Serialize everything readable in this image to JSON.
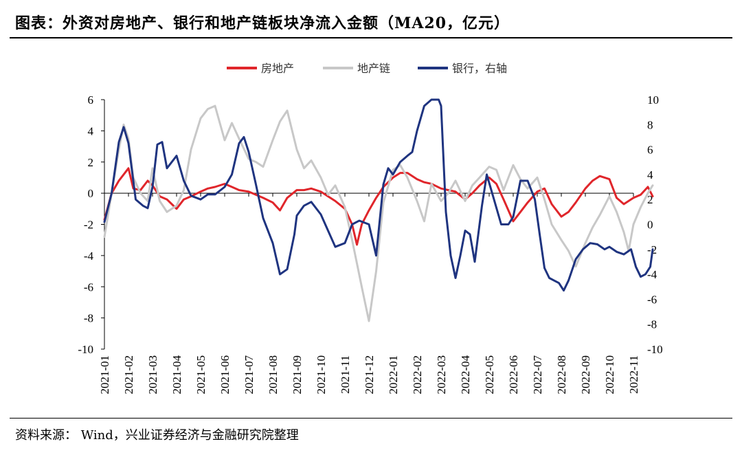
{
  "title": "图表：外资对房地产、银行和地产链板块净流入金额（MA20，亿元）",
  "source": "资料来源： Wind，兴业证券经济与金融研究院整理",
  "chart_data": {
    "type": "line",
    "legend_position": "top-center",
    "grid": false,
    "x": [
      "2021-01",
      "2021-02",
      "2021-03",
      "2021-04",
      "2021-05",
      "2021-06",
      "2021-07",
      "2021-08",
      "2021-09",
      "2021-10",
      "2021-11",
      "2021-12",
      "2022-01",
      "2022-02",
      "2022-03",
      "2022-04",
      "2022-05",
      "2022-06",
      "2022-07",
      "2022-08",
      "2022-09",
      "2022-10",
      "2022-11"
    ],
    "y_left": {
      "range": [
        -10,
        6
      ],
      "ticks": [
        "6",
        "4",
        "2",
        "0",
        "-2",
        "-4",
        "-6",
        "-8",
        "-10"
      ]
    },
    "y_right": {
      "range": [
        -10,
        10
      ],
      "ticks": [
        "10",
        "8",
        "6",
        "4",
        "2",
        "0",
        "-2",
        "-4",
        "-6",
        "-8",
        "-10"
      ]
    },
    "series": [
      {
        "name": "房地产",
        "color": "#e0262b",
        "axis": "left",
        "points": [
          [
            0,
            -1.7
          ],
          [
            0.3,
            0.0
          ],
          [
            0.6,
            0.8
          ],
          [
            0.8,
            1.2
          ],
          [
            1.0,
            1.6
          ],
          [
            1.2,
            0.3
          ],
          [
            1.5,
            0.2
          ],
          [
            1.8,
            0.8
          ],
          [
            2.0,
            0.5
          ],
          [
            2.3,
            -0.2
          ],
          [
            2.6,
            -0.4
          ],
          [
            3.0,
            -1.0
          ],
          [
            3.3,
            -0.4
          ],
          [
            3.6,
            -0.2
          ],
          [
            4.0,
            0.1
          ],
          [
            4.3,
            0.3
          ],
          [
            4.6,
            0.4
          ],
          [
            5.0,
            0.6
          ],
          [
            5.3,
            0.4
          ],
          [
            5.6,
            0.2
          ],
          [
            6.0,
            0.1
          ],
          [
            6.3,
            -0.1
          ],
          [
            6.6,
            -0.3
          ],
          [
            7.0,
            -0.6
          ],
          [
            7.3,
            -1.1
          ],
          [
            7.6,
            -0.3
          ],
          [
            8.0,
            0.2
          ],
          [
            8.3,
            0.2
          ],
          [
            8.6,
            0.3
          ],
          [
            9.0,
            0.1
          ],
          [
            9.3,
            -0.2
          ],
          [
            9.6,
            -0.5
          ],
          [
            10.0,
            -1.0
          ],
          [
            10.3,
            -2.0
          ],
          [
            10.5,
            -3.3
          ],
          [
            10.7,
            -2.0
          ],
          [
            11.0,
            -1.1
          ],
          [
            11.3,
            -0.3
          ],
          [
            11.6,
            0.4
          ],
          [
            12.0,
            1.0
          ],
          [
            12.3,
            1.3
          ],
          [
            12.6,
            1.3
          ],
          [
            13.0,
            0.9
          ],
          [
            13.3,
            0.7
          ],
          [
            13.6,
            0.6
          ],
          [
            14.0,
            0.3
          ],
          [
            14.3,
            0.2
          ],
          [
            14.6,
            0.1
          ],
          [
            15.0,
            -0.4
          ],
          [
            15.3,
            0.0
          ],
          [
            15.6,
            0.5
          ],
          [
            16.0,
            1.0
          ],
          [
            16.3,
            0.6
          ],
          [
            16.6,
            -0.4
          ],
          [
            17.0,
            -1.8
          ],
          [
            17.3,
            -1.2
          ],
          [
            17.6,
            -0.6
          ],
          [
            18.0,
            0.1
          ],
          [
            18.3,
            0.3
          ],
          [
            18.6,
            -0.7
          ],
          [
            19.0,
            -1.5
          ],
          [
            19.3,
            -1.2
          ],
          [
            19.6,
            -0.6
          ],
          [
            20.0,
            0.3
          ],
          [
            20.3,
            0.8
          ],
          [
            20.6,
            1.1
          ],
          [
            21.0,
            0.9
          ],
          [
            21.3,
            -0.3
          ],
          [
            21.6,
            -0.7
          ],
          [
            22.0,
            -0.3
          ],
          [
            22.3,
            -0.1
          ],
          [
            22.6,
            0.4
          ],
          [
            22.8,
            -0.2
          ]
        ]
      },
      {
        "name": "地产链",
        "color": "#c8c8c8",
        "axis": "left",
        "points": [
          [
            0,
            -2.8
          ],
          [
            0.3,
            0.0
          ],
          [
            0.6,
            2.8
          ],
          [
            0.8,
            4.4
          ],
          [
            1.0,
            3.5
          ],
          [
            1.2,
            1.0
          ],
          [
            1.5,
            0.0
          ],
          [
            1.8,
            -0.5
          ],
          [
            2.0,
            1.6
          ],
          [
            2.3,
            -0.5
          ],
          [
            2.6,
            -1.2
          ],
          [
            3.0,
            -0.8
          ],
          [
            3.3,
            0.2
          ],
          [
            3.6,
            2.8
          ],
          [
            4.0,
            4.8
          ],
          [
            4.3,
            5.4
          ],
          [
            4.6,
            5.6
          ],
          [
            5.0,
            3.4
          ],
          [
            5.3,
            4.5
          ],
          [
            5.6,
            3.5
          ],
          [
            6.0,
            2.2
          ],
          [
            6.3,
            2.0
          ],
          [
            6.6,
            1.7
          ],
          [
            7.0,
            3.4
          ],
          [
            7.3,
            4.6
          ],
          [
            7.6,
            5.3
          ],
          [
            8.0,
            2.8
          ],
          [
            8.3,
            1.6
          ],
          [
            8.6,
            2.1
          ],
          [
            9.0,
            1.0
          ],
          [
            9.3,
            -0.1
          ],
          [
            9.6,
            0.5
          ],
          [
            10.0,
            -0.9
          ],
          [
            10.3,
            -3.0
          ],
          [
            10.5,
            -4.5
          ],
          [
            10.7,
            -6.0
          ],
          [
            11.0,
            -8.2
          ],
          [
            11.3,
            -5.0
          ],
          [
            11.6,
            -0.6
          ],
          [
            12.0,
            1.5
          ],
          [
            12.3,
            1.8
          ],
          [
            12.6,
            1.0
          ],
          [
            13.0,
            -0.5
          ],
          [
            13.3,
            -1.8
          ],
          [
            13.6,
            0.6
          ],
          [
            14.0,
            -0.5
          ],
          [
            14.3,
            0.0
          ],
          [
            14.6,
            0.8
          ],
          [
            15.0,
            -0.5
          ],
          [
            15.3,
            0.5
          ],
          [
            15.6,
            1.0
          ],
          [
            16.0,
            1.7
          ],
          [
            16.3,
            1.5
          ],
          [
            16.6,
            0.2
          ],
          [
            17.0,
            1.8
          ],
          [
            17.3,
            0.9
          ],
          [
            17.6,
            0.3
          ],
          [
            18.0,
            1.0
          ],
          [
            18.3,
            -0.4
          ],
          [
            18.6,
            -2.0
          ],
          [
            19.0,
            -3.0
          ],
          [
            19.3,
            -3.7
          ],
          [
            19.6,
            -4.7
          ],
          [
            20.0,
            -3.2
          ],
          [
            20.3,
            -2.2
          ],
          [
            20.6,
            -1.4
          ],
          [
            21.0,
            -0.2
          ],
          [
            21.3,
            -1.2
          ],
          [
            21.6,
            -2.5
          ],
          [
            21.8,
            -3.7
          ],
          [
            22.0,
            -2.0
          ],
          [
            22.3,
            -0.9
          ],
          [
            22.6,
            0.0
          ],
          [
            22.8,
            0.5
          ]
        ]
      },
      {
        "name": "银行，右轴",
        "color": "#1f3480",
        "axis": "right",
        "points": [
          [
            0,
            0.2
          ],
          [
            0.3,
            2.5
          ],
          [
            0.6,
            6.6
          ],
          [
            0.8,
            7.8
          ],
          [
            1.0,
            6.5
          ],
          [
            1.3,
            2.0
          ],
          [
            1.6,
            1.5
          ],
          [
            1.8,
            1.3
          ],
          [
            2.0,
            3.0
          ],
          [
            2.2,
            6.4
          ],
          [
            2.4,
            6.6
          ],
          [
            2.6,
            4.5
          ],
          [
            3.0,
            5.5
          ],
          [
            3.3,
            3.5
          ],
          [
            3.6,
            2.3
          ],
          [
            4.0,
            2.0
          ],
          [
            4.3,
            2.4
          ],
          [
            4.6,
            2.4
          ],
          [
            5.0,
            3.0
          ],
          [
            5.3,
            4.0
          ],
          [
            5.6,
            6.5
          ],
          [
            5.8,
            7.0
          ],
          [
            6.0,
            5.8
          ],
          [
            6.3,
            3.2
          ],
          [
            6.6,
            0.5
          ],
          [
            7.0,
            -1.5
          ],
          [
            7.3,
            -4.0
          ],
          [
            7.6,
            -3.6
          ],
          [
            7.9,
            -0.8
          ],
          [
            8.0,
            0.7
          ],
          [
            8.3,
            1.5
          ],
          [
            8.6,
            1.8
          ],
          [
            9.0,
            0.8
          ],
          [
            9.3,
            -0.5
          ],
          [
            9.6,
            -1.8
          ],
          [
            10.0,
            -1.5
          ],
          [
            10.3,
            0.0
          ],
          [
            10.6,
            0.3
          ],
          [
            11.0,
            0.0
          ],
          [
            11.3,
            -2.5
          ],
          [
            11.6,
            3.2
          ],
          [
            11.8,
            4.5
          ],
          [
            12.0,
            4.0
          ],
          [
            12.3,
            5.0
          ],
          [
            12.6,
            5.5
          ],
          [
            12.8,
            5.8
          ],
          [
            13.0,
            7.5
          ],
          [
            13.3,
            9.5
          ],
          [
            13.6,
            11.0
          ],
          [
            13.9,
            10.5
          ],
          [
            14.0,
            9.5
          ],
          [
            14.2,
            1.0
          ],
          [
            14.4,
            -2.5
          ],
          [
            14.6,
            -4.3
          ],
          [
            14.8,
            -2.5
          ],
          [
            15.0,
            -0.5
          ],
          [
            15.2,
            -0.8
          ],
          [
            15.4,
            -3.0
          ],
          [
            15.7,
            1.5
          ],
          [
            15.9,
            4.0
          ],
          [
            16.2,
            2.0
          ],
          [
            16.5,
            0.0
          ],
          [
            16.8,
            0.0
          ],
          [
            17.0,
            0.6
          ],
          [
            17.3,
            3.5
          ],
          [
            17.6,
            3.5
          ],
          [
            17.9,
            2.0
          ],
          [
            18.1,
            -0.8
          ],
          [
            18.3,
            -3.5
          ],
          [
            18.5,
            -4.3
          ],
          [
            18.7,
            -4.5
          ],
          [
            18.9,
            -4.7
          ],
          [
            19.1,
            -5.3
          ],
          [
            19.3,
            -4.5
          ],
          [
            19.6,
            -2.8
          ],
          [
            19.9,
            -2.0
          ],
          [
            20.2,
            -1.5
          ],
          [
            20.5,
            -1.6
          ],
          [
            20.8,
            -2.0
          ],
          [
            21.0,
            -1.8
          ],
          [
            21.3,
            -2.2
          ],
          [
            21.6,
            -2.4
          ],
          [
            21.9,
            -2.0
          ],
          [
            22.1,
            -3.4
          ],
          [
            22.3,
            -4.2
          ],
          [
            22.5,
            -4.0
          ],
          [
            22.7,
            -3.4
          ],
          [
            22.8,
            -2.0
          ]
        ]
      }
    ]
  }
}
